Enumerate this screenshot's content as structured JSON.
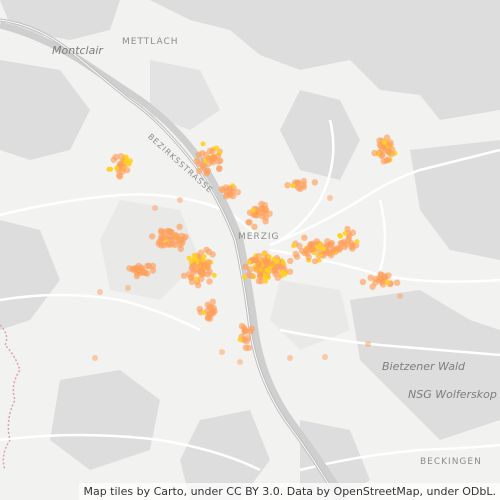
{
  "map": {
    "labels": {
      "montclair": "Montclair",
      "mettlach": "METTLACH",
      "bezirksstrasse": "BEZIRKSSTRASSE",
      "merzig": "MERZIG",
      "bietzener_wald": "Bietzener Wald",
      "nsg_wolfersk": "NSG Wolferskop",
      "beckingen": "BECKINGEN"
    },
    "attribution": "Map tiles by Carto, under CC BY 3.0. Data by OpenStreetMap, under ODbL.",
    "colors": {
      "background": "#f2f2f0",
      "forest": "#dedede",
      "river": "#c8c8c8",
      "road": "#ffffff",
      "motorway": "#b9b9b9",
      "point_orange": "#ff9e5a",
      "point_hot": "#ffd21f",
      "border": "#d9a3ad"
    }
  }
}
